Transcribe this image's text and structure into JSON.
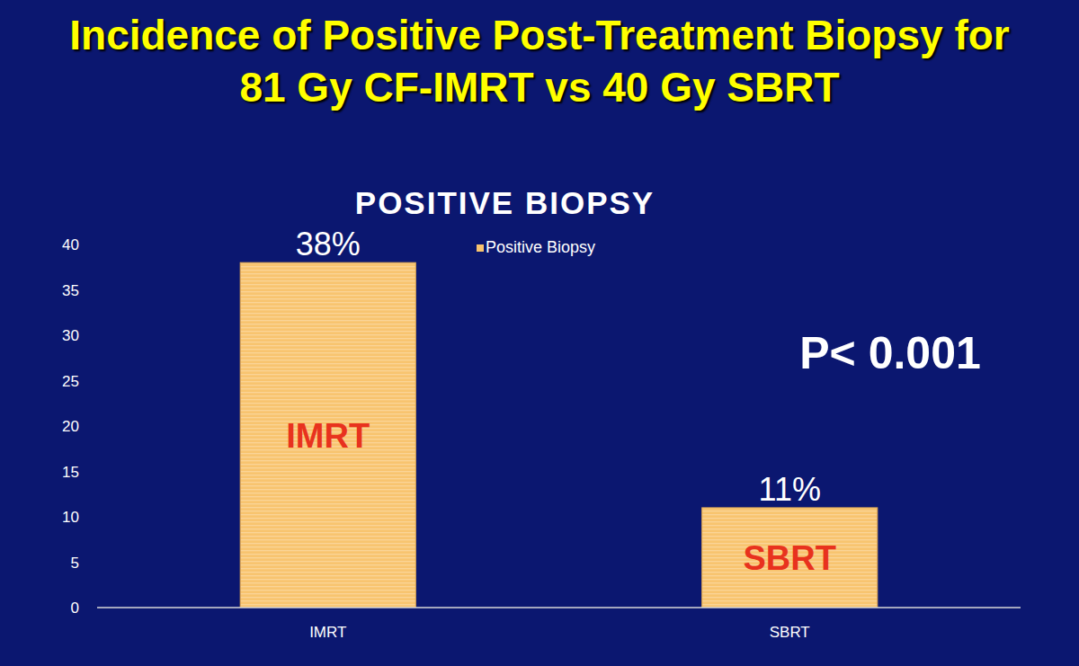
{
  "chart_data": {
    "type": "bar",
    "title": "Incidence of Positive Post-Treatment Biopsy for 81 Gy CF-IMRT vs 40 Gy SBRT",
    "subtitle": "POSITIVE BIOPSY",
    "categories": [
      "IMRT",
      "SBRT"
    ],
    "series": [
      {
        "name": "Positive Biopsy",
        "color": "#f8c46f",
        "values": [
          38,
          11
        ],
        "value_labels": [
          "38%",
          "11%"
        ]
      }
    ],
    "ylim": [
      0,
      40
    ],
    "yticks": [
      0,
      5,
      10,
      15,
      20,
      25,
      30,
      35,
      40
    ],
    "grid": false,
    "legend": "top",
    "data_labels": true,
    "annotations": [
      "P< 0.001"
    ]
  }
}
